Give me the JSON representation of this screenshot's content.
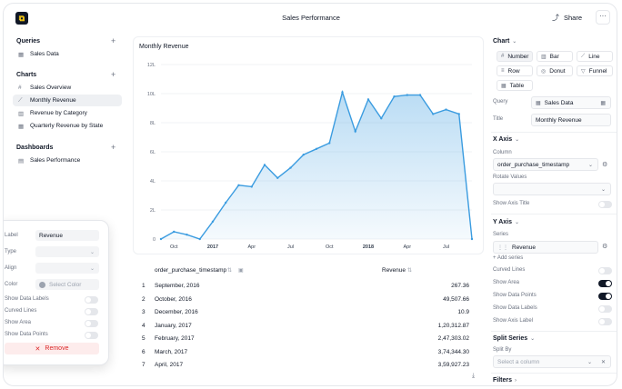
{
  "header": {
    "title": "Sales Performance",
    "share_label": "Share",
    "more_label": "···"
  },
  "sidebar": {
    "queries_label": "Queries",
    "queries": [
      {
        "label": "Sales Data"
      }
    ],
    "charts_label": "Charts",
    "charts": [
      {
        "label": "Sales Overview"
      },
      {
        "label": "Monthly Revenue"
      },
      {
        "label": "Revenue by Category"
      },
      {
        "label": "Quarterly Revenue by State"
      }
    ],
    "dashboards_label": "Dashboards",
    "dashboards": [
      {
        "label": "Sales Performance"
      }
    ]
  },
  "chart_data": {
    "type": "area",
    "title": "Monthly Revenue",
    "x_tick_labels": [
      "Oct",
      "2017",
      "Apr",
      "Jul",
      "Oct",
      "2018",
      "Apr",
      "Jul"
    ],
    "y_tick_labels": [
      "0",
      "2L",
      "4L",
      "6L",
      "8L",
      "10L",
      "12L"
    ],
    "ylim": [
      0,
      12
    ],
    "y_unit": "L",
    "x": [
      "2016-09",
      "2016-10",
      "2016-11",
      "2016-12",
      "2017-01",
      "2017-02",
      "2017-03",
      "2017-04",
      "2017-05",
      "2017-06",
      "2017-07",
      "2017-08",
      "2017-09",
      "2017-10",
      "2017-11",
      "2017-12",
      "2018-01",
      "2018-02",
      "2018-03",
      "2018-04",
      "2018-05",
      "2018-06",
      "2018-07",
      "2018-08",
      "2018-09"
    ],
    "values": [
      0.0,
      0.5,
      0.3,
      0.0,
      1.2,
      2.5,
      3.7,
      3.6,
      5.1,
      4.2,
      4.9,
      5.8,
      6.2,
      6.6,
      10.1,
      7.4,
      9.6,
      8.3,
      9.8,
      9.9,
      9.9,
      8.6,
      8.9,
      8.6,
      0.0
    ],
    "grid": true
  },
  "table": {
    "col1": "order_purchase_timestamp",
    "col2": "Revenue",
    "rows": [
      {
        "n": "1",
        "date": "September, 2016",
        "value": "267.36"
      },
      {
        "n": "2",
        "date": "October, 2016",
        "value": "49,507.66"
      },
      {
        "n": "3",
        "date": "December, 2016",
        "value": "10.9"
      },
      {
        "n": "4",
        "date": "January, 2017",
        "value": "1,20,312.87"
      },
      {
        "n": "5",
        "date": "February, 2017",
        "value": "2,47,303.02"
      },
      {
        "n": "6",
        "date": "March, 2017",
        "value": "3,74,344.30"
      },
      {
        "n": "7",
        "date": "April, 2017",
        "value": "3,59,927.23"
      }
    ]
  },
  "panel": {
    "chart_label": "Chart",
    "chart_types": [
      {
        "label": "Number",
        "icon": "hash-icon"
      },
      {
        "label": "Bar",
        "icon": "bar-icon"
      },
      {
        "label": "Line",
        "icon": "line-icon"
      },
      {
        "label": "Row",
        "icon": "row-icon"
      },
      {
        "label": "Donut",
        "icon": "donut-icon"
      },
      {
        "label": "Funnel",
        "icon": "funnel-icon"
      },
      {
        "label": "Table",
        "icon": "table-icon"
      }
    ],
    "query_label": "Query",
    "query_value": "Sales Data",
    "title_label": "Title",
    "title_value": "Monthly Revenue",
    "xaxis_label": "X Axis",
    "column_label": "Column",
    "column_value": "order_purchase_timestamp",
    "rotate_label": "Rotate Values",
    "show_axis_title_label": "Show Axis Title",
    "yaxis_label": "Y Axis",
    "series_label": "Series",
    "series_value": "Revenue",
    "add_series_label": "+ Add series",
    "curved_lines_label": "Curved Lines",
    "show_area_label": "Show Area",
    "show_data_points_label": "Show Data Points",
    "show_data_labels_label": "Show Data Labels",
    "show_axis_label_label": "Show Axis Label",
    "split_series_label": "Split Series",
    "split_by_label": "Split By",
    "split_placeholder": "Select a column",
    "filters_label": "Filters"
  },
  "popup": {
    "label_label": "Label",
    "label_value": "Revenue",
    "type_label": "Type",
    "align_label": "Align",
    "color_label": "Color",
    "color_placeholder": "Select Color",
    "show_data_labels": "Show Data Labels",
    "curved_lines": "Curved Lines",
    "show_area": "Show Area",
    "show_data_points": "Show Data Points",
    "remove_label": "Remove"
  },
  "colors": {
    "accent": "#3b9ce0",
    "area_fill": "#dbeafe",
    "remove": "#dc2626"
  }
}
